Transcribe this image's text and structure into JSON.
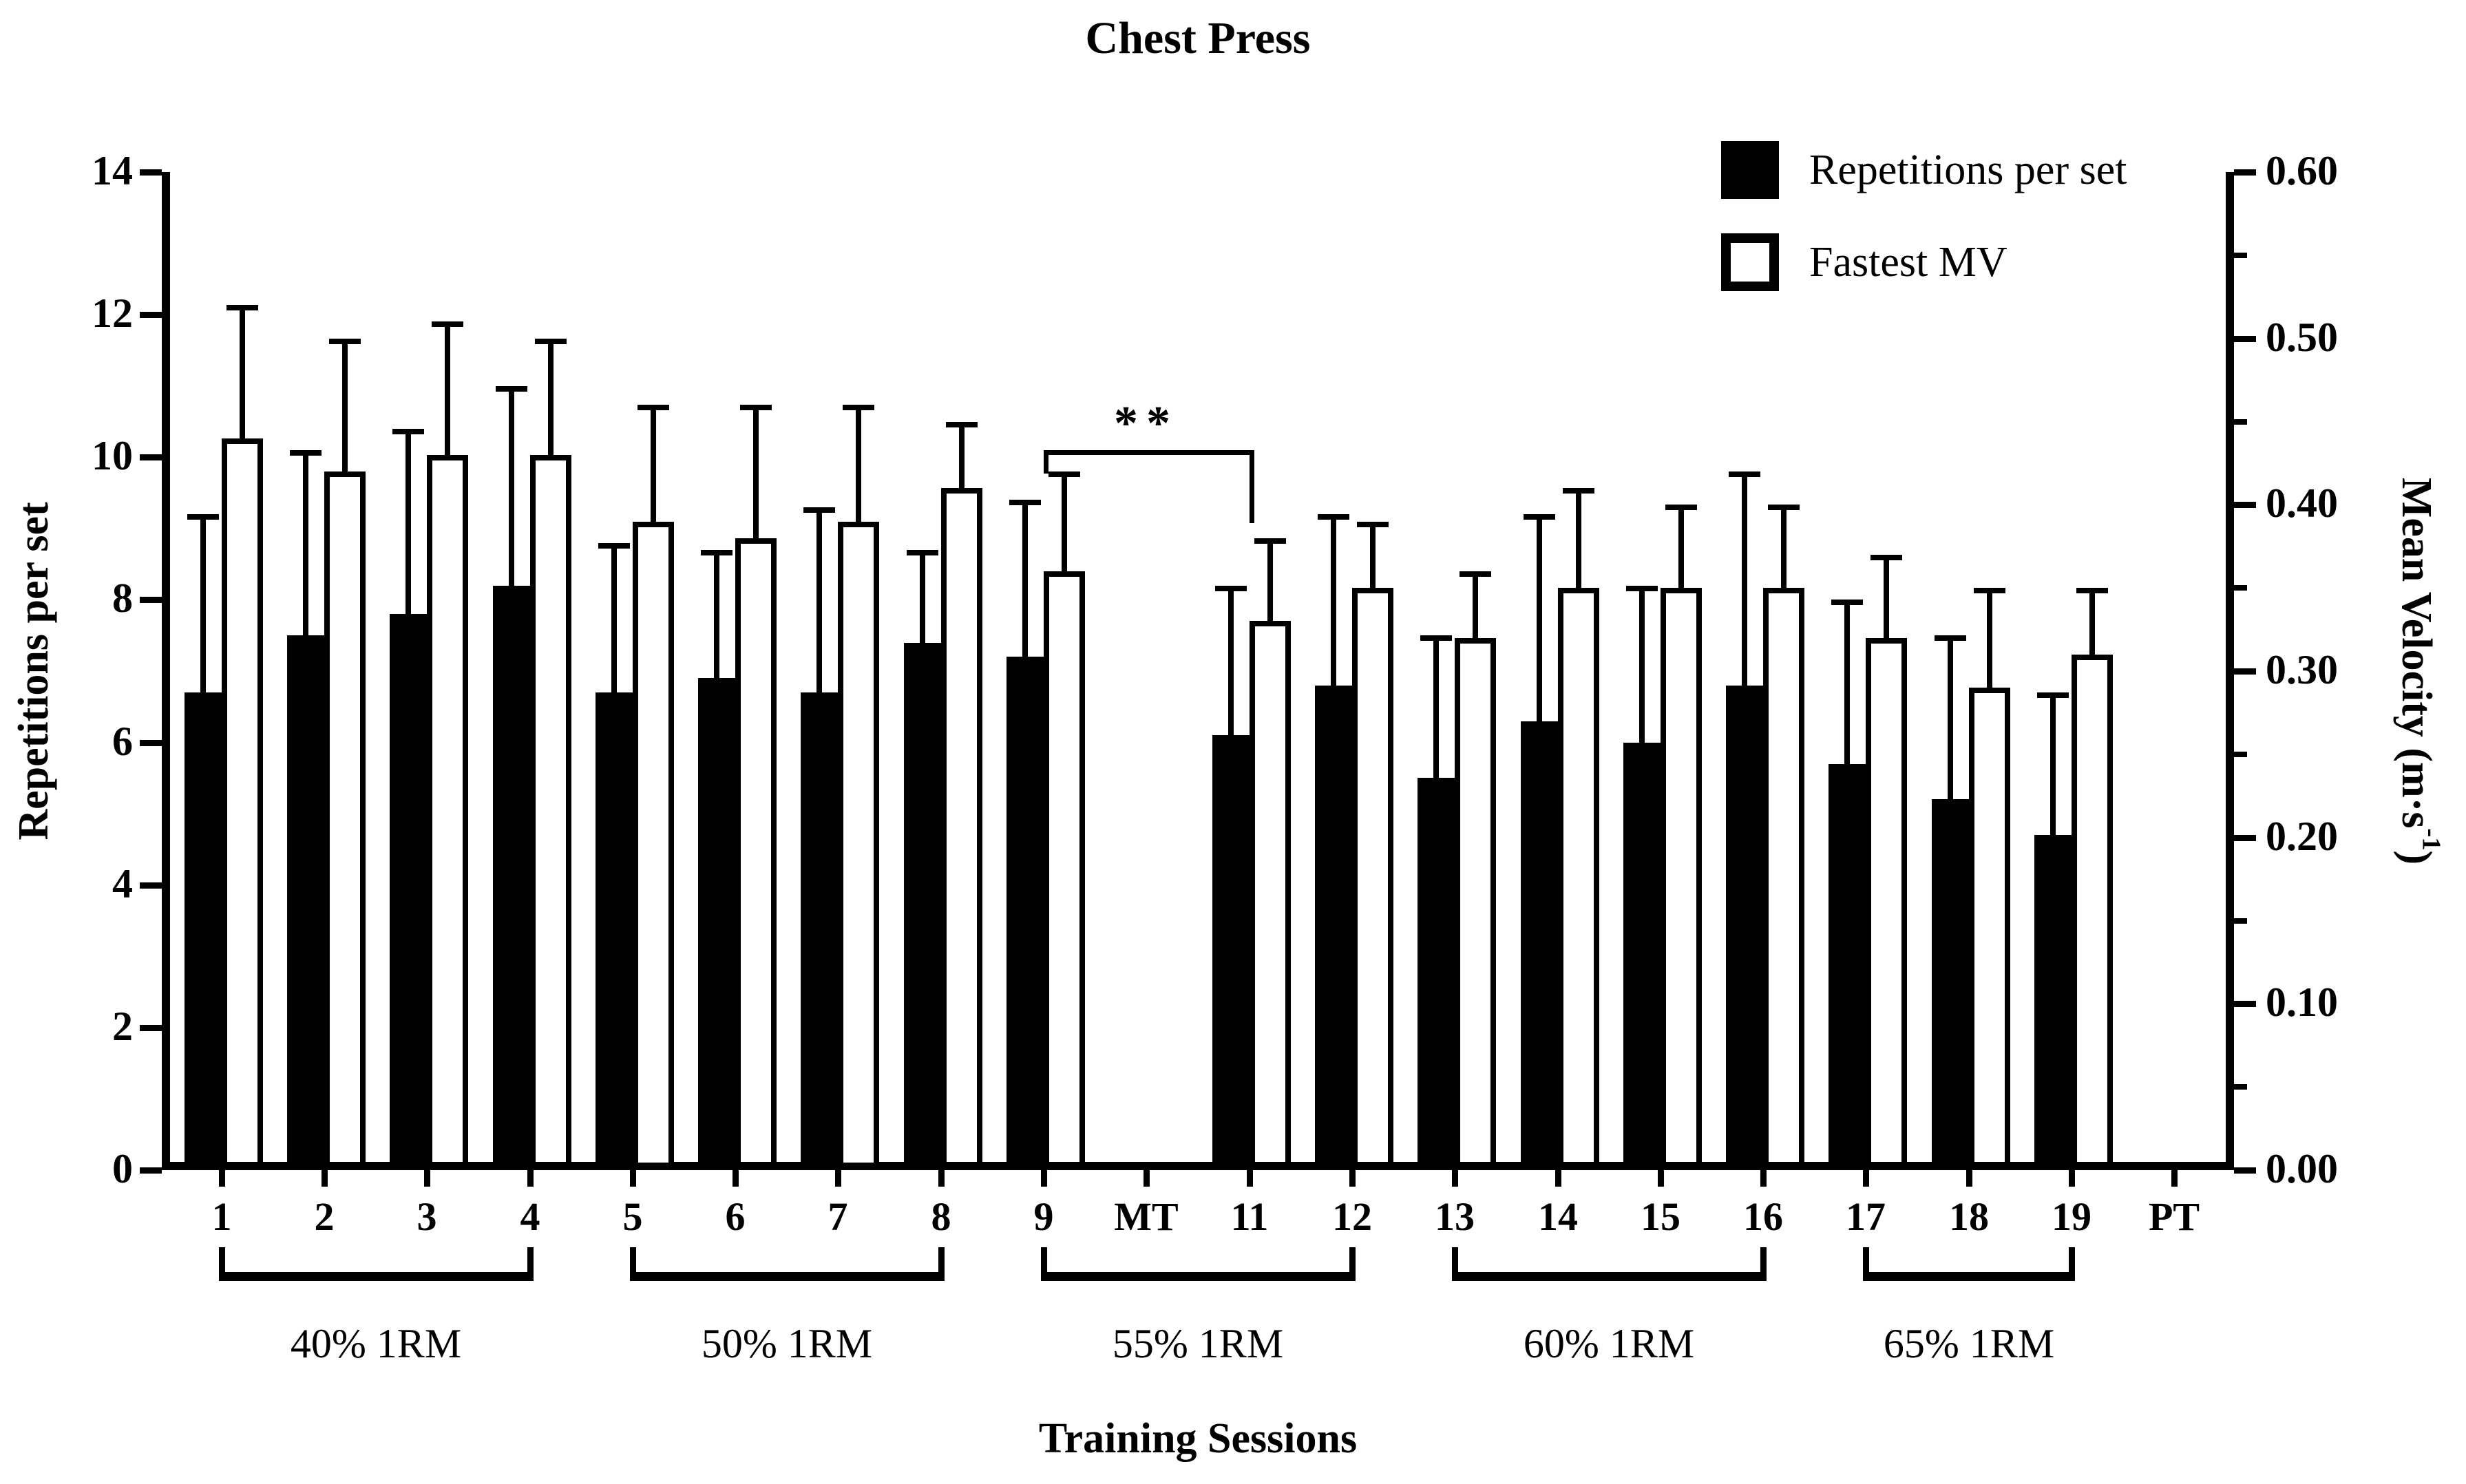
{
  "figure": {
    "title": "Chest Press",
    "x_title": "Training Sessions",
    "left_axis_title": "Repetitions per set",
    "right_axis_title_prefix": "Mean Velocity (m·s",
    "right_axis_title_sup": "-1",
    "right_axis_title_suffix": ")"
  },
  "legend": {
    "items": [
      {
        "label": "Repetitions per set",
        "swatch": "black"
      },
      {
        "label": "Fastest MV",
        "swatch": "white"
      }
    ]
  },
  "colors": {
    "foreground": "#000000",
    "background": "#ffffff"
  },
  "chart_data": {
    "type": "bar",
    "title": "Chest Press",
    "xlabel": "Training Sessions",
    "grid": false,
    "legend_position": "top-right",
    "categories": [
      "1",
      "2",
      "3",
      "4",
      "5",
      "6",
      "7",
      "8",
      "9",
      "MT",
      "11",
      "12",
      "13",
      "14",
      "15",
      "16",
      "17",
      "18",
      "19",
      "PT"
    ],
    "left_axis": {
      "label": "Repetitions per set",
      "min": 0,
      "max": 14,
      "tick_step": 2,
      "tick_labels": [
        "0",
        "2",
        "4",
        "6",
        "8",
        "10",
        "12",
        "14"
      ]
    },
    "right_axis": {
      "label": "Mean Velocity (m·s-1)",
      "min": 0.0,
      "max": 0.6,
      "tick_step": 0.1,
      "minor_tick_step": 0.05,
      "tick_labels": [
        "0.00",
        "0.10",
        "0.20",
        "0.30",
        "0.40",
        "0.50",
        "0.60"
      ]
    },
    "series": [
      {
        "name": "Repetitions per set",
        "axis": "left",
        "fill": "#000000",
        "values": [
          6.7,
          7.5,
          7.8,
          8.2,
          6.7,
          6.9,
          6.7,
          7.4,
          7.2,
          null,
          6.1,
          6.8,
          5.5,
          6.3,
          6.0,
          6.8,
          5.7,
          5.2,
          4.7,
          null
        ],
        "error_upper": [
          2.5,
          2.6,
          2.6,
          2.8,
          2.1,
          1.8,
          2.6,
          1.3,
          2.2,
          null,
          2.1,
          2.4,
          2.0,
          2.9,
          2.2,
          3.0,
          2.3,
          2.3,
          2.0,
          null
        ]
      },
      {
        "name": "Fastest MV",
        "axis": "right",
        "fill": "#ffffff",
        "values": [
          0.44,
          0.42,
          0.43,
          0.43,
          0.39,
          0.38,
          0.39,
          0.41,
          0.36,
          null,
          0.33,
          0.35,
          0.32,
          0.35,
          0.35,
          0.35,
          0.32,
          0.29,
          0.31,
          null
        ],
        "error_upper": [
          0.08,
          0.08,
          0.08,
          0.07,
          0.07,
          0.08,
          0.07,
          0.04,
          0.06,
          null,
          0.05,
          0.04,
          0.04,
          0.06,
          0.05,
          0.05,
          0.05,
          0.06,
          0.04,
          null
        ]
      }
    ],
    "groups": [
      {
        "label": "40% 1RM",
        "start": "1",
        "end": "4"
      },
      {
        "label": "50% 1RM",
        "start": "5",
        "end": "8"
      },
      {
        "label": "55% 1RM",
        "start": "9",
        "end": "12"
      },
      {
        "label": "60% 1RM",
        "start": "13",
        "end": "16"
      },
      {
        "label": "65% 1RM",
        "start": "17",
        "end": "19"
      }
    ],
    "significance": {
      "label": "**",
      "start": "9",
      "end": "11",
      "height_left_axis_units": 10.1
    }
  }
}
